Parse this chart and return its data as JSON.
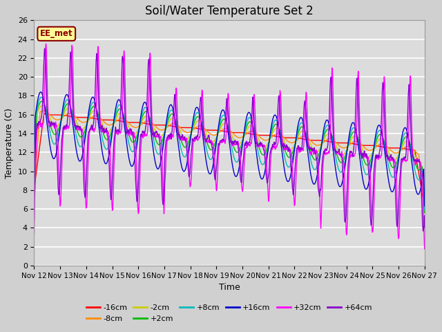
{
  "title": "Soil/Water Temperature Set 2",
  "xlabel": "Time",
  "ylabel": "Temperature (C)",
  "ylim": [
    0,
    26
  ],
  "yticks": [
    0,
    2,
    4,
    6,
    8,
    10,
    12,
    14,
    16,
    18,
    20,
    22,
    24,
    26
  ],
  "date_labels": [
    "Nov 12",
    "Nov 13",
    "Nov 14",
    "Nov 15",
    "Nov 16",
    "Nov 17",
    "Nov 18",
    "Nov 19",
    "Nov 20",
    "Nov 21",
    "Nov 22",
    "Nov 23",
    "Nov 24",
    "Nov 25",
    "Nov 26",
    "Nov 27"
  ],
  "annotation_text": "EE_met",
  "annotation_color": "#8B0000",
  "annotation_bg": "#FFFF99",
  "series": [
    {
      "label": "-16cm",
      "color": "#FF0000"
    },
    {
      "label": "-8cm",
      "color": "#FF8C00"
    },
    {
      "label": "-2cm",
      "color": "#CCCC00"
    },
    {
      "label": "+2cm",
      "color": "#00BB00"
    },
    {
      "label": "+8cm",
      "color": "#00BBBB"
    },
    {
      "label": "+16cm",
      "color": "#0000CC"
    },
    {
      "label": "+32cm",
      "color": "#FF00FF"
    },
    {
      "label": "+64cm",
      "color": "#8800CC"
    }
  ],
  "fig_bg": "#D0D0D0",
  "plot_bg": "#DCDCDC",
  "title_fontsize": 12,
  "figsize": [
    6.4,
    4.8
  ],
  "dpi": 100
}
